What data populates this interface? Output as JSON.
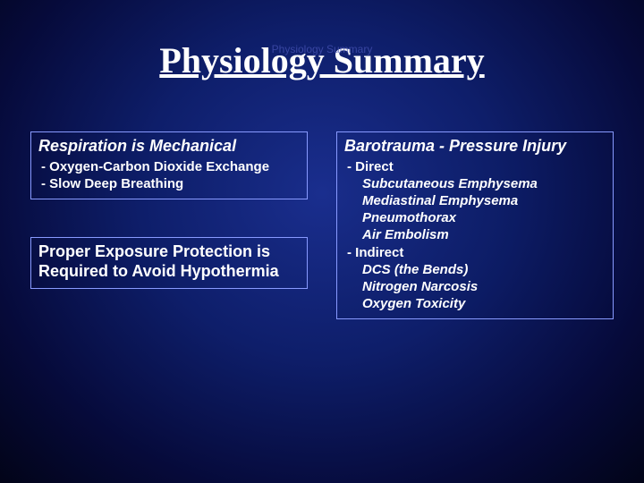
{
  "ghost_title": "Physiology Summary",
  "title": "Physiology Summary",
  "left": {
    "box1": {
      "heading": "Respiration is Mechanical",
      "bullets": [
        "Oxygen-Carbon Dioxide Exchange",
        "Slow Deep Breathing"
      ]
    },
    "box2": {
      "heading": "Proper Exposure Protection is Required to Avoid Hypothermia"
    }
  },
  "right": {
    "box1": {
      "heading": "Barotrauma - Pressure Injury",
      "bullets": {
        "direct": {
          "label": "Direct",
          "items": [
            "Subcutaneous Emphysema",
            "Mediastinal Emphysema",
            "Pneumothorax",
            "Air Embolism"
          ]
        },
        "indirect": {
          "label": "Indirect",
          "items": [
            "DCS (the Bends)",
            "Nitrogen Narcosis",
            "Oxygen Toxicity"
          ]
        }
      }
    }
  },
  "colors": {
    "text": "#ffffff",
    "border": "#889aff",
    "bg_center": "#1a2e8e",
    "bg_edge": "#020418"
  }
}
